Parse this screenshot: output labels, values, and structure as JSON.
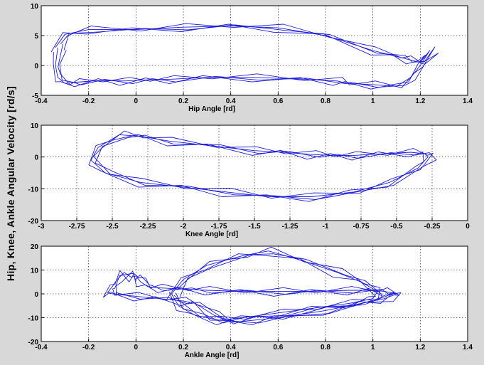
{
  "figure": {
    "ylabel": "Hip, Knee, Ankle Angular Velocity [rd/s]",
    "colors": {
      "trace": "#1a1ad8",
      "background": "#d8d8d8",
      "axes": "#ffffff"
    }
  },
  "chart_data": [
    {
      "type": "line",
      "title": "",
      "xlabel": "Hip Angle [rd]",
      "ylabel": "",
      "xlim": [
        -0.4,
        1.4
      ],
      "ylim": [
        -5,
        10
      ],
      "xticks": [
        -0.4,
        -0.2,
        0,
        0.2,
        0.4,
        0.6,
        0.8,
        1,
        1.2,
        1.4
      ],
      "xtick_labels": [
        "-0.4",
        "-0.2",
        "0",
        "0.2",
        "0.4",
        "0.6",
        "0.8",
        "1",
        "1.2",
        "1.4"
      ],
      "yticks": [
        -5,
        0,
        5,
        10
      ],
      "ytick_labels": [
        "-5",
        "0",
        "5",
        "10"
      ],
      "grid": true,
      "series": [
        {
          "x": [
            -0.33,
            -0.34,
            -0.33,
            -0.3,
            -0.25,
            -0.15,
            -0.05,
            0.05,
            0.15,
            0.3,
            0.5,
            0.7,
            0.85,
            0.89,
            1.0,
            1.1,
            1.16,
            1.2,
            1.24,
            1.2,
            1.15,
            1.1,
            1.0,
            0.8,
            0.6,
            0.4,
            0.2,
            0.0,
            -0.2,
            -0.3,
            -0.34
          ],
          "y": [
            3.0,
            0.0,
            -2.0,
            -3.0,
            -2.8,
            -2.5,
            -2.6,
            -2.4,
            -2.3,
            -2.0,
            -2.0,
            -2.3,
            -2.6,
            -3.0,
            -3.2,
            -3.5,
            -2.0,
            0.0,
            2.5,
            0.5,
            1.0,
            1.5,
            2.5,
            5.0,
            6.3,
            6.6,
            6.4,
            6.0,
            6.0,
            5.2,
            3.0
          ]
        }
      ]
    },
    {
      "type": "line",
      "title": "",
      "xlabel": "Knee Angle [rd]",
      "ylabel": "",
      "xlim": [
        -3,
        0
      ],
      "ylim": [
        -20,
        10
      ],
      "xticks": [
        -3,
        -2.75,
        -2.5,
        -2.25,
        -2,
        -1.75,
        -1.5,
        -1.25,
        -1,
        -0.75,
        -0.5,
        -0.25,
        0
      ],
      "xtick_labels": [
        "-3",
        "-2.75",
        "-2.5",
        "-2.25",
        "-2",
        "-1.75",
        "-1.5",
        "-1.25",
        "-1",
        "-0.75",
        "-0.5",
        "-0.25",
        "0"
      ],
      "yticks": [
        -20,
        -10,
        0,
        10
      ],
      "ytick_labels": [
        "-20",
        "-10",
        "0",
        "10"
      ],
      "grid": true,
      "series": [
        {
          "x": [
            -2.45,
            -2.6,
            -2.65,
            -2.55,
            -2.3,
            -2.0,
            -1.7,
            -1.4,
            -1.1,
            -0.8,
            -0.55,
            -0.35,
            -0.28,
            -0.3,
            -0.4,
            -0.6,
            -0.8,
            -0.95,
            -1.1,
            -1.3,
            -1.5,
            -1.8,
            -2.1,
            -2.3,
            -2.45
          ],
          "y": [
            7.0,
            3.0,
            -1.0,
            -5.0,
            -8.0,
            -9.5,
            -11.0,
            -12.5,
            -12.5,
            -11.0,
            -8.0,
            -3.5,
            0.0,
            1.0,
            1.5,
            1.0,
            0.5,
            0.5,
            0.8,
            1.5,
            2.0,
            3.5,
            5.0,
            6.5,
            7.0
          ]
        }
      ]
    },
    {
      "type": "line",
      "title": "",
      "xlabel": "Ankle Angle [rd]",
      "ylabel": "",
      "xlim": [
        -0.4,
        1.4
      ],
      "ylim": [
        -20,
        20
      ],
      "xticks": [
        -0.4,
        -0.2,
        0,
        0.2,
        0.4,
        0.6,
        0.8,
        1,
        1.2,
        1.4
      ],
      "xtick_labels": [
        "-0.4",
        "-0.2",
        "0",
        "0.2",
        "0.4",
        "0.6",
        "0.8",
        "1",
        "1.2",
        "1.4"
      ],
      "yticks": [
        -20,
        -10,
        0,
        10,
        20
      ],
      "ytick_labels": [
        "-20",
        "-10",
        "0",
        "10",
        "20"
      ],
      "grid": true,
      "series": [
        {
          "x": [
            -0.12,
            -0.1,
            -0.08,
            -0.05,
            -0.02,
            0.0,
            0.02,
            0.05,
            0.1,
            0.2,
            0.3,
            0.45,
            0.6,
            0.75,
            0.9,
            1.0,
            1.05,
            1.1,
            1.05,
            0.95,
            0.8,
            0.6,
            0.5,
            0.4,
            0.33,
            0.25,
            0.2,
            0.1,
            0.0,
            -0.1,
            -0.12
          ],
          "y": [
            0.5,
            3.0,
            6.0,
            9.0,
            7.0,
            7.5,
            5.0,
            3.0,
            2.5,
            2.0,
            1.5,
            1.0,
            1.0,
            1.0,
            1.5,
            1.5,
            1.0,
            0.0,
            -2.0,
            -4.0,
            -7.0,
            -10.0,
            -11.0,
            -12.0,
            -9.0,
            -4.0,
            -3.0,
            -2.0,
            -1.0,
            0.0,
            0.5
          ]
        },
        {
          "x": [
            0.15,
            0.2,
            0.3,
            0.45,
            0.56,
            0.7,
            0.85,
            0.95,
            1.02,
            1.0,
            0.9,
            0.75,
            0.6,
            0.45,
            0.35,
            0.25,
            0.18,
            0.15
          ],
          "y": [
            0.0,
            6.0,
            12.0,
            16.0,
            18.0,
            14.0,
            9.0,
            5.0,
            1.0,
            -2.0,
            -4.0,
            -6.0,
            -8.0,
            -10.0,
            -11.0,
            -9.0,
            -5.0,
            0.0
          ]
        }
      ]
    }
  ]
}
